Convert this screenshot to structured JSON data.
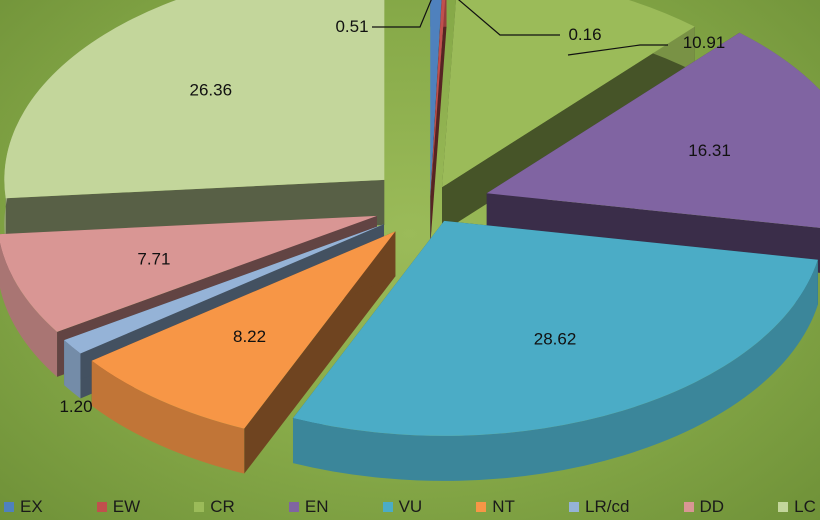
{
  "chart_data": {
    "type": "pie",
    "style": "3d-exploded",
    "categories": [
      "EX",
      "EW",
      "CR",
      "EN",
      "VU",
      "NT",
      "LR/cd",
      "DD",
      "LC"
    ],
    "values": [
      0.51,
      0.16,
      10.91,
      16.31,
      28.62,
      8.22,
      1.2,
      7.71,
      26.36
    ],
    "value_labels": [
      "0.51",
      "0.16",
      "10.91",
      "16.31",
      "28.62",
      "8.22",
      "1.20",
      "7.71",
      "26.36"
    ],
    "colors": [
      "#4f81bd",
      "#c0504d",
      "#9bbb59",
      "#8064a2",
      "#4bacc6",
      "#f79646",
      "#95b3d7",
      "#d99694",
      "#c3d69b"
    ],
    "legend_position": "bottom",
    "title": ""
  }
}
